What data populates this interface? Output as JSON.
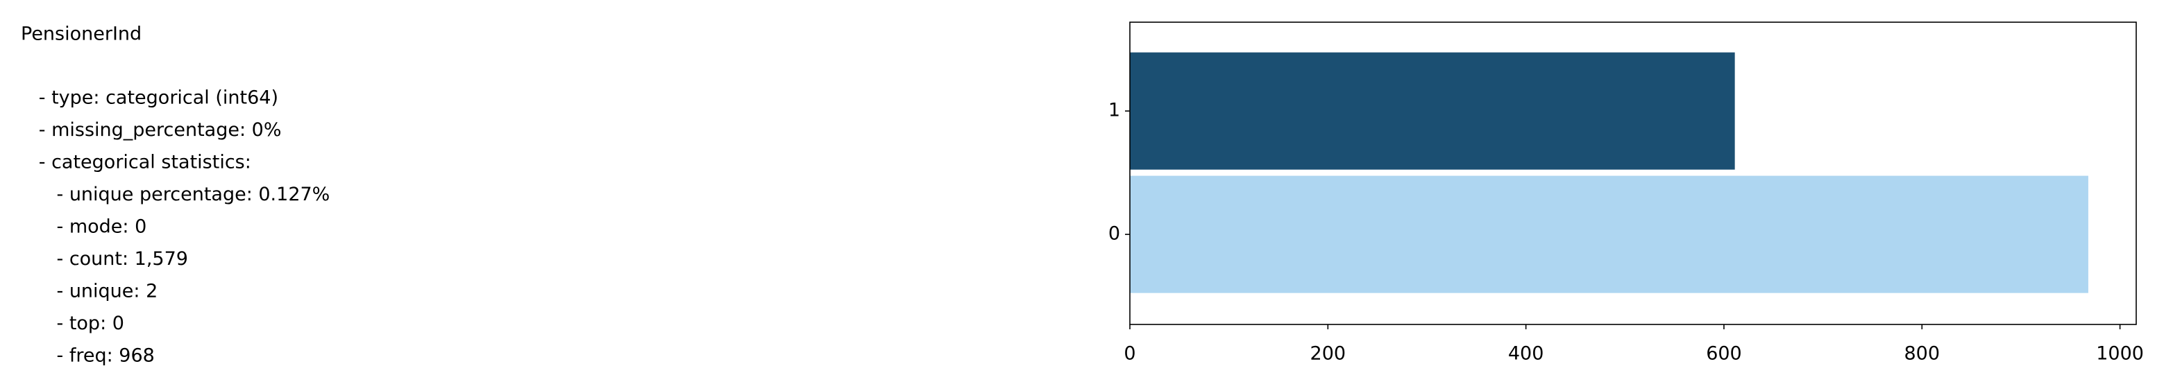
{
  "text": {
    "title": "PensionerInd",
    "lines": [
      "   - type: categorical (int64)",
      "   - missing_percentage: 0%",
      "   - categorical statistics:",
      "      - unique percentage: 0.127%",
      "      - mode: 0",
      "      - count: 1,579",
      "      - unique: 2",
      "      - top: 0",
      "      - freq: 968"
    ]
  },
  "chart_data": {
    "type": "barh",
    "categories": [
      "0",
      "1"
    ],
    "values": [
      968,
      611
    ],
    "colors": [
      "#aed6f1",
      "#1b4f72"
    ],
    "xlim": [
      0,
      1016.4
    ],
    "xticks": [
      0,
      200,
      400,
      600,
      800,
      1000
    ],
    "ylim": [
      -0.73,
      1.72
    ]
  }
}
